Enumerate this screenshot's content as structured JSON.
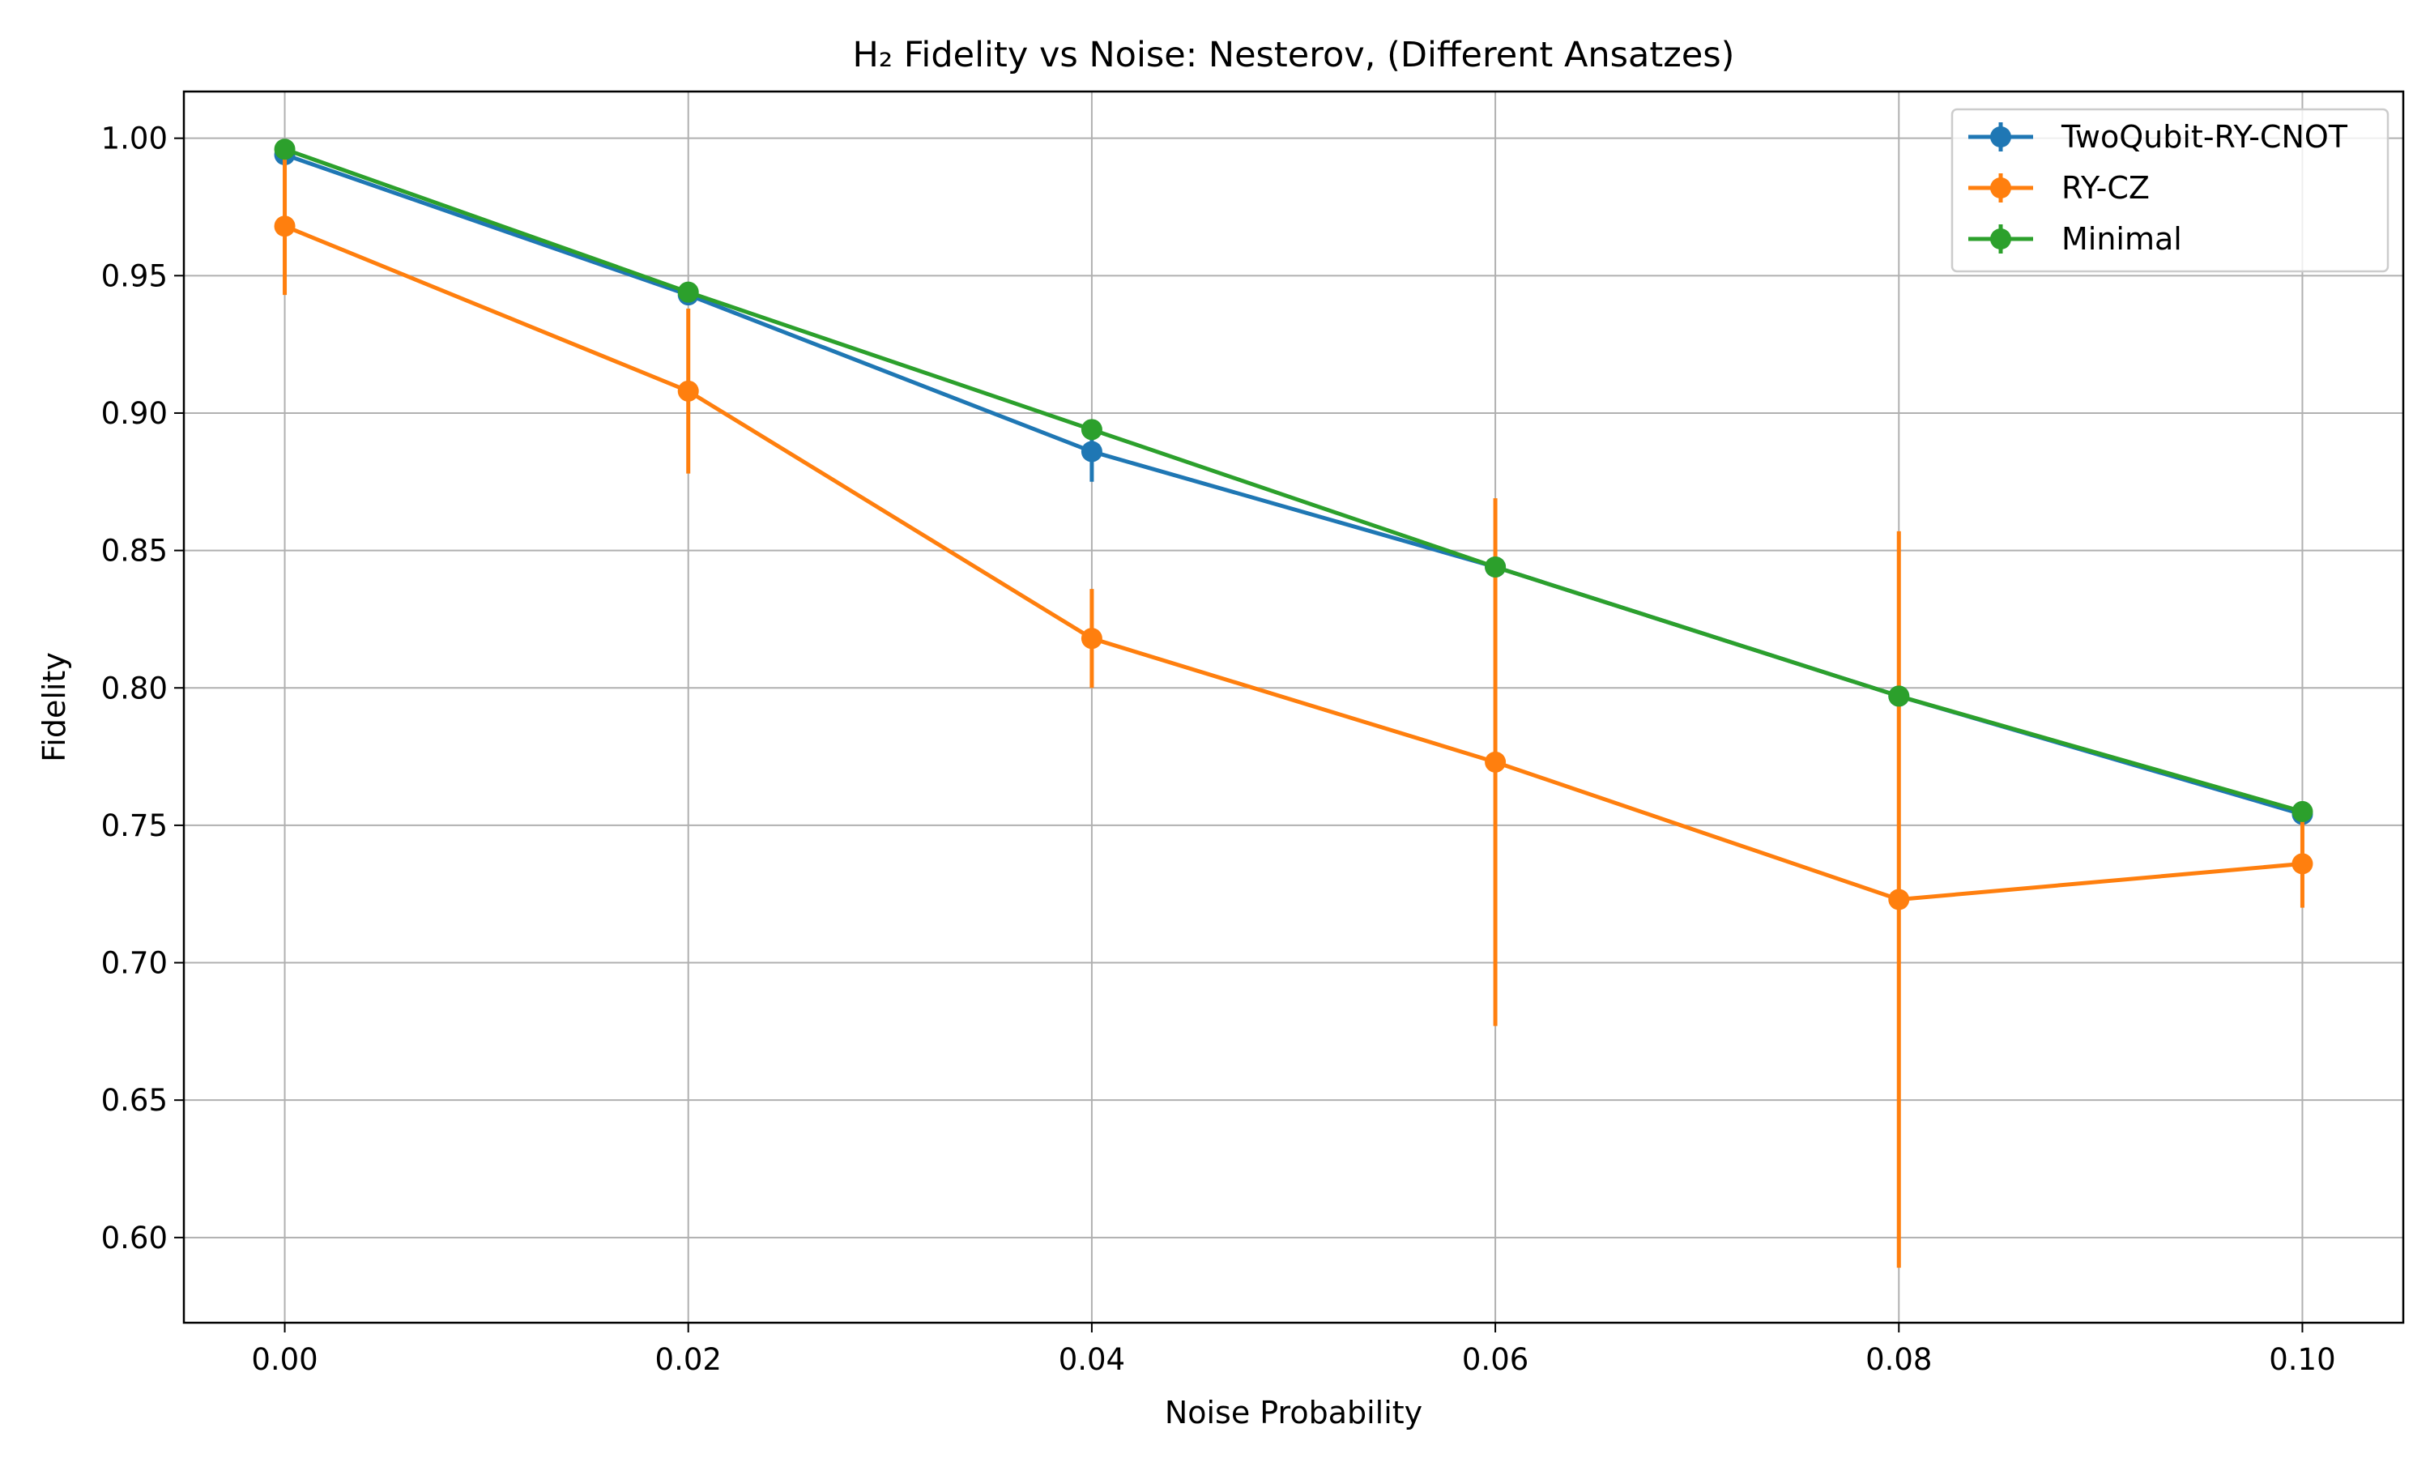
{
  "chart_data": {
    "type": "line",
    "title": "H₂ Fidelity vs Noise: Nesterov, (Different Ansatzes)",
    "xlabel": "Noise Probability",
    "ylabel": "Fidelity",
    "x": [
      0.0,
      0.02,
      0.04,
      0.06,
      0.08,
      0.1
    ],
    "xlim": [
      -0.005,
      0.105
    ],
    "ylim": [
      0.569,
      1.017
    ],
    "xticks": [
      0.0,
      0.02,
      0.04,
      0.06,
      0.08,
      0.1
    ],
    "yticks": [
      0.6,
      0.65,
      0.7,
      0.75,
      0.8,
      0.85,
      0.9,
      0.95,
      1.0
    ],
    "xtick_labels": [
      "0.00",
      "0.02",
      "0.04",
      "0.06",
      "0.08",
      "0.10"
    ],
    "ytick_labels": [
      "0.60",
      "0.65",
      "0.70",
      "0.75",
      "0.80",
      "0.85",
      "0.90",
      "0.95",
      "1.00"
    ],
    "grid": true,
    "legend_position": "top-right",
    "series": [
      {
        "name": "TwoQubit-RY-CNOT",
        "color": "#1f77b4",
        "values": [
          0.994,
          0.943,
          0.886,
          0.844,
          0.797,
          0.754
        ],
        "errors": [
          0.002,
          0.002,
          0.011,
          0.001,
          0.002,
          0.002
        ]
      },
      {
        "name": "RY-CZ",
        "color": "#ff7f0e",
        "values": [
          0.968,
          0.908,
          0.818,
          0.773,
          0.723,
          0.736
        ],
        "errors": [
          0.025,
          0.03,
          0.018,
          0.096,
          0.134,
          0.016
        ]
      },
      {
        "name": "Minimal",
        "color": "#2ca02c",
        "values": [
          0.996,
          0.944,
          0.894,
          0.844,
          0.797,
          0.755
        ],
        "errors": [
          0.001,
          0.001,
          0.001,
          0.001,
          0.001,
          0.001
        ]
      }
    ]
  }
}
